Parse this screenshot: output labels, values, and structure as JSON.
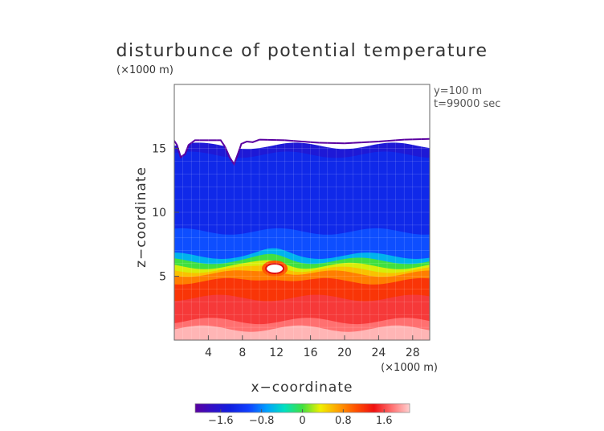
{
  "chart_data": {
    "type": "heatmap",
    "title": "disturbunce of potential temperature",
    "scale_note": "(×1000 m)",
    "xlabel": "x−coordinate",
    "ylabel": "z−coordinate",
    "x_unit_note": "(×1000 m)",
    "annotation_lines": [
      "y=100 m",
      "t=99000 sec"
    ],
    "x_ticks": [
      4,
      8,
      12,
      16,
      20,
      24,
      28
    ],
    "y_ticks": [
      5,
      10,
      15
    ],
    "xlim": [
      0,
      30
    ],
    "ylim": [
      0,
      20
    ],
    "colorbar": {
      "ticks": [
        "−1.6",
        "−0.8",
        "0",
        "0.8",
        "1.6"
      ],
      "tick_values": [
        -1.6,
        -0.8,
        0,
        0.8,
        1.6
      ],
      "range": [
        -2.1,
        2.1
      ],
      "colors": [
        "#5a00a0",
        "#3010c8",
        "#1020e0",
        "#1040ff",
        "#00a0ff",
        "#00e0c0",
        "#40e040",
        "#f0f000",
        "#ffa000",
        "#ff5000",
        "#f01010",
        "#ff7070",
        "#ffd0d0"
      ]
    },
    "top_of_layer_km": [
      [
        0,
        15.7
      ],
      [
        0.4,
        15.3
      ],
      [
        0.8,
        14.4
      ],
      [
        1.2,
        14.6
      ],
      [
        1.6,
        15.3
      ],
      [
        2.4,
        15.7
      ],
      [
        5.5,
        15.7
      ],
      [
        6.0,
        15.2
      ],
      [
        6.6,
        14.3
      ],
      [
        7.0,
        13.9
      ],
      [
        7.4,
        14.6
      ],
      [
        7.8,
        15.4
      ],
      [
        8.5,
        15.6
      ],
      [
        9.2,
        15.55
      ],
      [
        10.0,
        15.75
      ],
      [
        13,
        15.7
      ],
      [
        15,
        15.6
      ],
      [
        17,
        15.5
      ],
      [
        20,
        15.45
      ],
      [
        24,
        15.6
      ],
      [
        27,
        15.75
      ],
      [
        30,
        15.8
      ]
    ],
    "bands_km": [
      {
        "bottom": 0.0,
        "top": 0.9,
        "value": 2.0
      },
      {
        "bottom": 0.9,
        "top": 1.5,
        "value": 1.75
      },
      {
        "bottom": 1.5,
        "top": 3.3,
        "value": 1.55
      },
      {
        "bottom": 3.3,
        "top": 4.6,
        "value": 1.2
      },
      {
        "bottom": 4.6,
        "top": 5.2,
        "value": 0.85
      },
      {
        "bottom": 5.2,
        "top": 5.5,
        "value": 0.55
      },
      {
        "bottom": 5.5,
        "top": 5.8,
        "value": 0.3
      },
      {
        "bottom": 5.8,
        "top": 6.2,
        "value": 0.0
      },
      {
        "bottom": 6.2,
        "top": 6.6,
        "value": -0.6
      },
      {
        "bottom": 6.6,
        "top": 8.5,
        "value": -1.0
      },
      {
        "bottom": 8.5,
        "top": 14.5,
        "value": -1.3
      },
      {
        "bottom": 14.5,
        "top": 15.2,
        "value": -1.55
      }
    ],
    "hot_spot": {
      "x": 11.8,
      "z": 5.6,
      "value": 2.1
    }
  }
}
